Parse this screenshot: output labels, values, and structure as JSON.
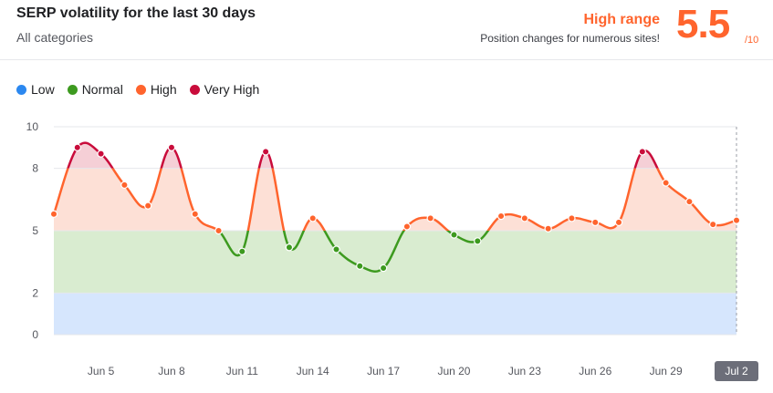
{
  "header": {
    "title": "SERP volatility for the last 30 days",
    "category": "All categories",
    "range_label": "High range",
    "range_description": "Position changes for numerous sites!",
    "score": "5.5",
    "score_max": "/10"
  },
  "legend": [
    {
      "label": "Low",
      "color": "#2b88f0"
    },
    {
      "label": "Normal",
      "color": "#3d9a1f"
    },
    {
      "label": "High",
      "color": "#ff642d"
    },
    {
      "label": "Very High",
      "color": "#c90c3b"
    }
  ],
  "colors": {
    "low_band": "#d6e6fd",
    "normal_band": "#d9ecd0",
    "high_band": "#fde0d6",
    "very_high_band": "#f5cfd6",
    "grid": "#e6e7eb",
    "x_active_bg": "#6c6e79"
  },
  "chart_data": {
    "type": "line",
    "ylim": [
      0,
      10
    ],
    "yticks": [
      0,
      2,
      5,
      8,
      10
    ],
    "bands": [
      {
        "name": "Low",
        "from": 0,
        "to": 2
      },
      {
        "name": "Normal",
        "from": 2,
        "to": 5
      },
      {
        "name": "High",
        "from": 5,
        "to": 8
      },
      {
        "name": "Very High",
        "from": 8,
        "to": 10
      }
    ],
    "x": [
      "Jun 3",
      "Jun 4",
      "Jun 5",
      "Jun 6",
      "Jun 7",
      "Jun 8",
      "Jun 9",
      "Jun 10",
      "Jun 11",
      "Jun 12",
      "Jun 13",
      "Jun 14",
      "Jun 15",
      "Jun 16",
      "Jun 17",
      "Jun 18",
      "Jun 19",
      "Jun 20",
      "Jun 21",
      "Jun 22",
      "Jun 23",
      "Jun 24",
      "Jun 25",
      "Jun 26",
      "Jun 27",
      "Jun 28",
      "Jun 29",
      "Jun 30",
      "Jul 1",
      "Jul 2"
    ],
    "values": [
      5.8,
      9.0,
      8.7,
      7.2,
      6.2,
      9.0,
      5.8,
      5.0,
      4.0,
      8.8,
      4.2,
      5.6,
      4.1,
      3.3,
      3.2,
      5.2,
      5.6,
      4.8,
      4.5,
      5.7,
      5.6,
      5.1,
      5.6,
      5.4,
      5.4,
      8.8,
      7.3,
      6.4,
      5.3,
      5.5
    ],
    "xtick_labels": [
      {
        "index": 2,
        "label": "Jun 5"
      },
      {
        "index": 5,
        "label": "Jun 8"
      },
      {
        "index": 8,
        "label": "Jun 11"
      },
      {
        "index": 11,
        "label": "Jun 14"
      },
      {
        "index": 14,
        "label": "Jun 17"
      },
      {
        "index": 17,
        "label": "Jun 20"
      },
      {
        "index": 20,
        "label": "Jun 23"
      },
      {
        "index": 23,
        "label": "Jun 26"
      },
      {
        "index": 26,
        "label": "Jun 29"
      },
      {
        "index": 29,
        "label": "Jul 2"
      }
    ],
    "active_index": 29
  }
}
